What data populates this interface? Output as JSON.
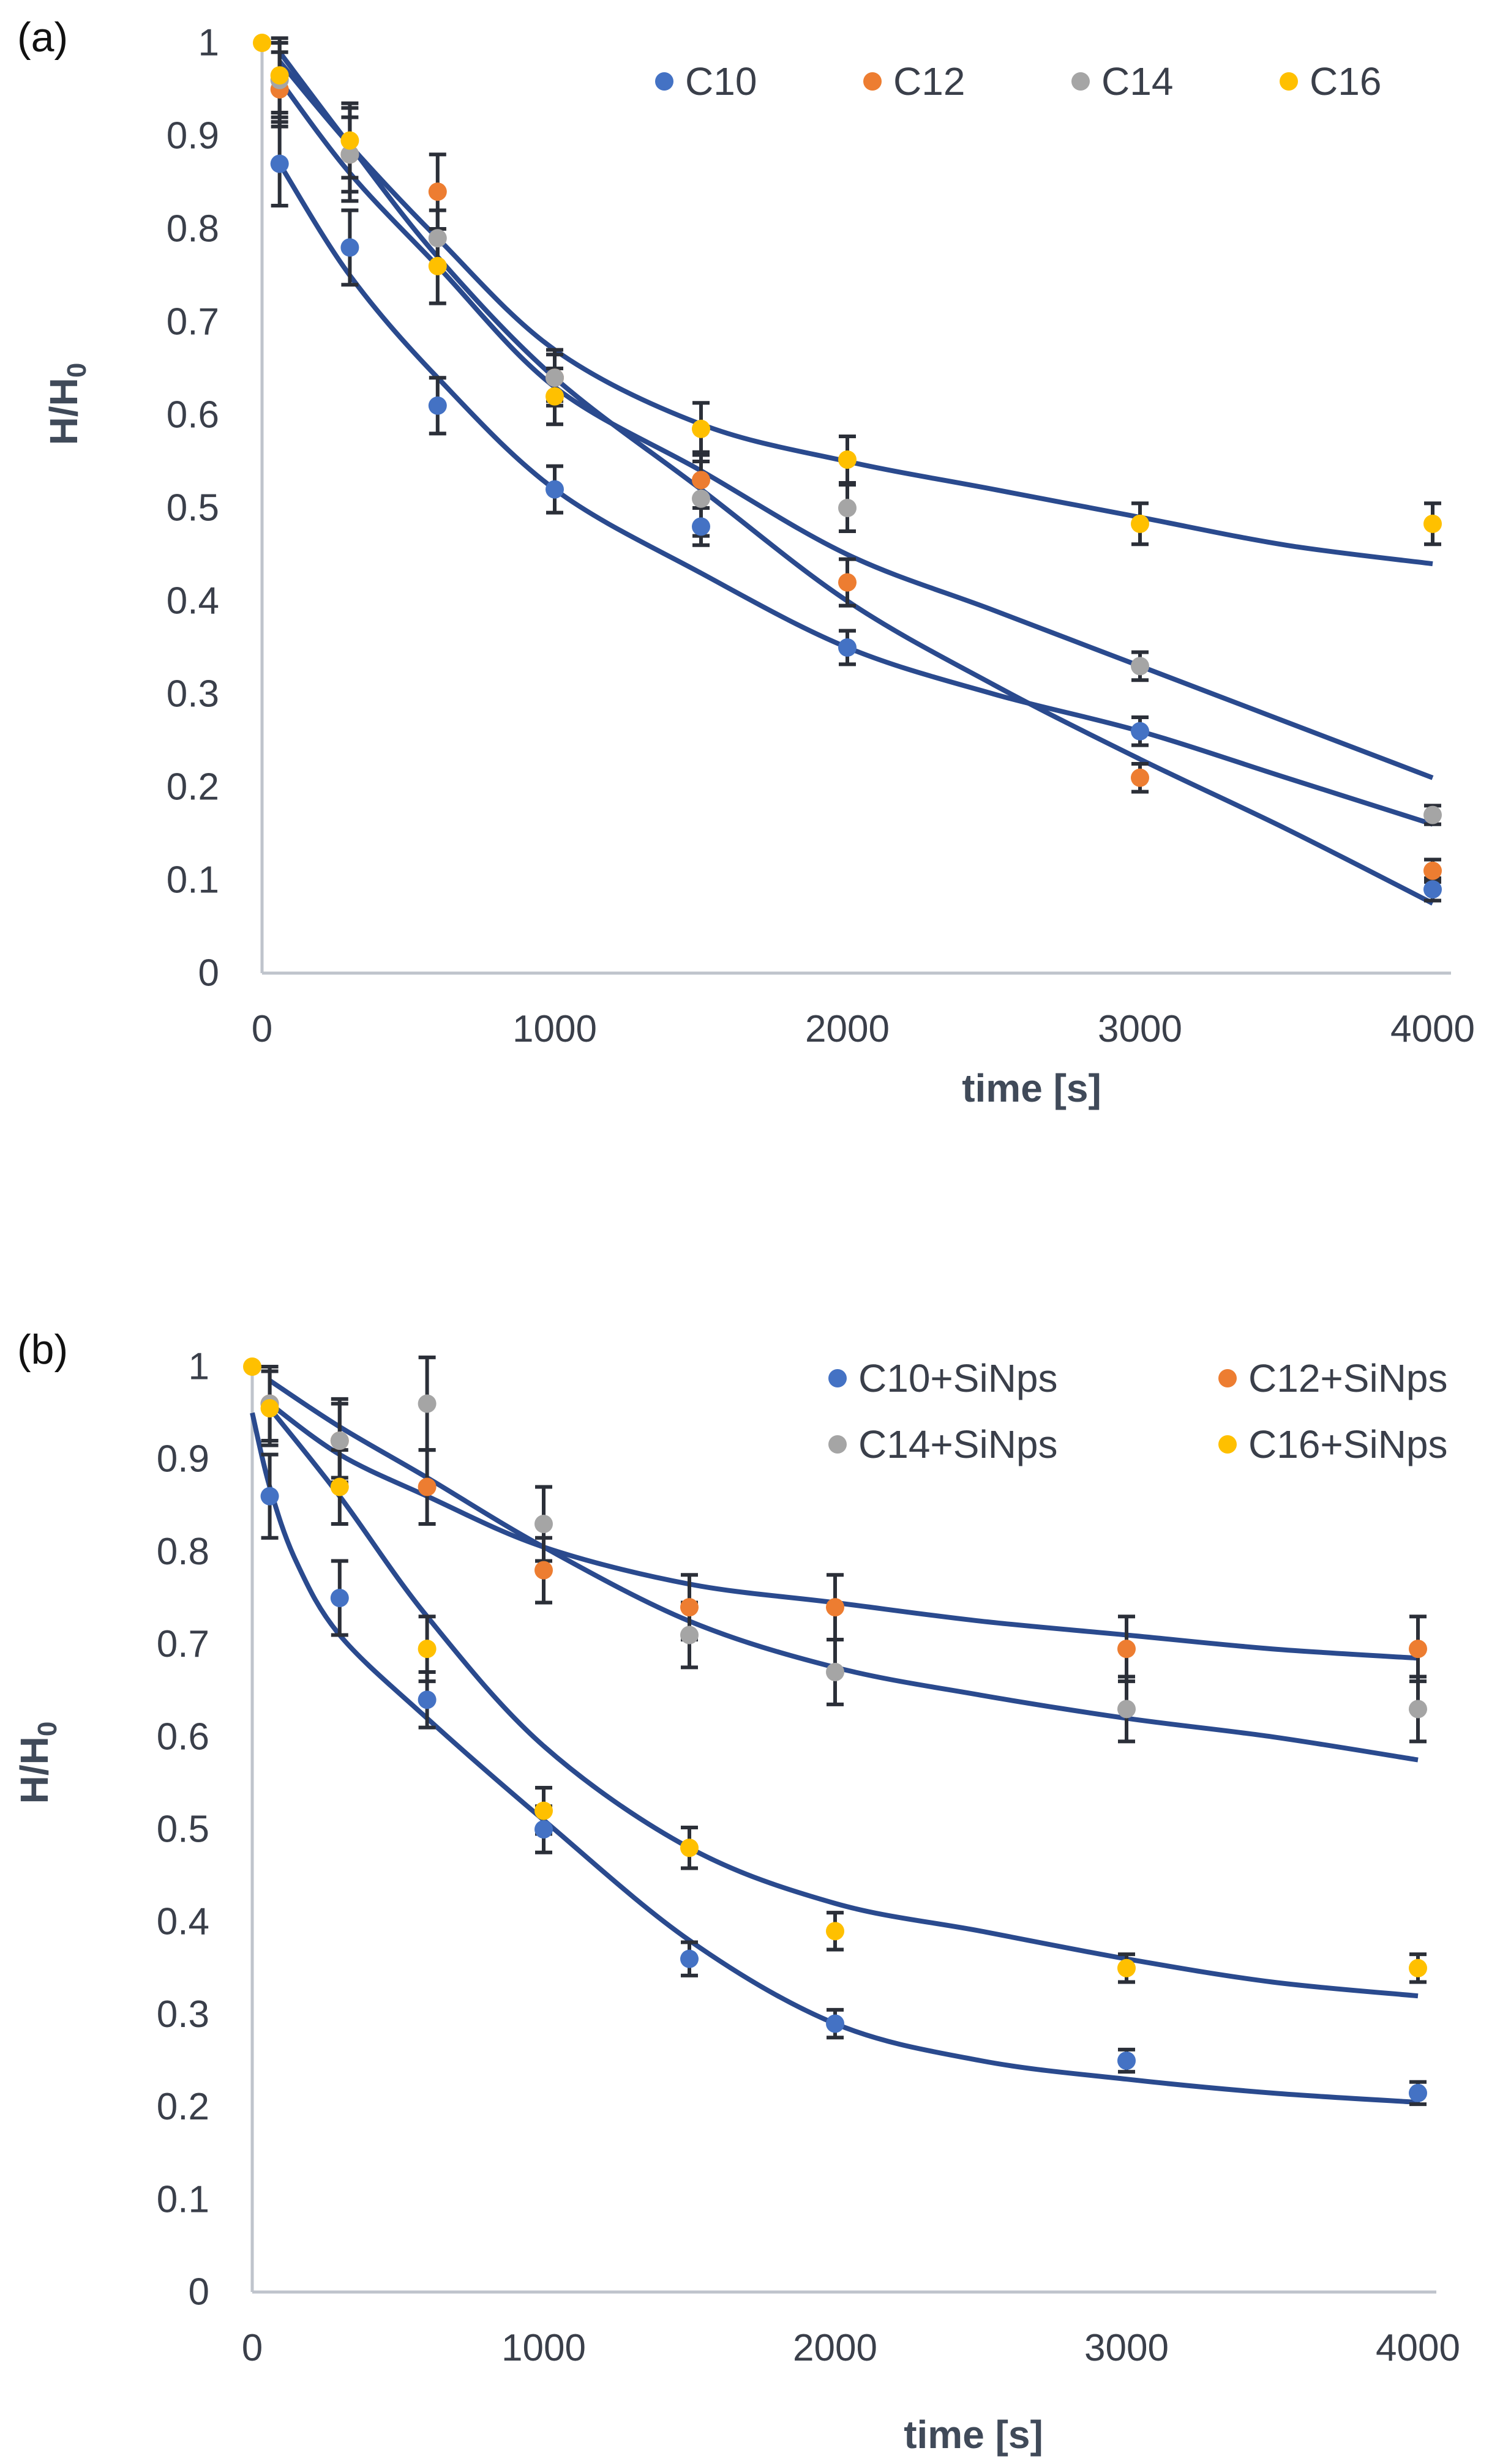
{
  "chart_data": [
    {
      "type": "scatter",
      "panel_label": "(a)",
      "xlabel": "time [s]",
      "ylabel_main": "H/H",
      "ylabel_sub": "0",
      "xlim": [
        0,
        4000
      ],
      "ylim": [
        0,
        1
      ],
      "x_ticks": [
        "0",
        "1000",
        "2000",
        "3000",
        "4000"
      ],
      "y_ticks": [
        "0",
        "0.1",
        "0.2",
        "0.3",
        "0.4",
        "0.5",
        "0.6",
        "0.7",
        "0.8",
        "0.9",
        "1"
      ],
      "legend_position": "top-right",
      "series": [
        {
          "name": "C10",
          "color": "#4472c4",
          "x": [
            60,
            300,
            600,
            1000,
            1500,
            2000,
            3000,
            4000
          ],
          "y": [
            0.87,
            0.78,
            0.61,
            0.52,
            0.48,
            0.35,
            0.26,
            0.09
          ],
          "err": [
            0.045,
            0.04,
            0.03,
            0.025,
            0.02,
            0.018,
            0.015,
            0.012
          ],
          "fit_x": [
            60,
            300,
            600,
            1000,
            1500,
            2000,
            2500,
            3000,
            3500,
            4000
          ],
          "fit_y": [
            0.87,
            0.75,
            0.64,
            0.52,
            0.43,
            0.35,
            0.3,
            0.26,
            0.21,
            0.16
          ]
        },
        {
          "name": "C12",
          "color": "#ed7d31",
          "x": [
            60,
            300,
            600,
            1000,
            1500,
            2000,
            3000,
            4000
          ],
          "y": [
            0.95,
            0.88,
            0.84,
            0.64,
            0.53,
            0.42,
            0.21,
            0.11
          ],
          "err": [
            0.04,
            0.05,
            0.04,
            0.03,
            0.03,
            0.025,
            0.015,
            0.012
          ],
          "fit_x": [
            60,
            300,
            600,
            1000,
            1500,
            2000,
            2500,
            3000,
            3500,
            4000
          ],
          "fit_y": [
            0.99,
            0.89,
            0.77,
            0.64,
            0.52,
            0.4,
            0.31,
            0.23,
            0.155,
            0.075
          ]
        },
        {
          "name": "C14",
          "color": "#a5a5a5",
          "x": [
            60,
            300,
            600,
            1000,
            1500,
            2000,
            3000,
            4000
          ],
          "y": [
            0.96,
            0.88,
            0.79,
            0.64,
            0.51,
            0.5,
            0.33,
            0.17
          ],
          "err": [
            0.04,
            0.04,
            0.03,
            0.025,
            0.04,
            0.025,
            0.015,
            0.01
          ],
          "fit_x": [
            60,
            300,
            600,
            1000,
            1500,
            2000,
            2500,
            3000,
            3500,
            4000
          ],
          "fit_y": [
            0.96,
            0.86,
            0.76,
            0.63,
            0.54,
            0.45,
            0.39,
            0.33,
            0.27,
            0.21
          ]
        },
        {
          "name": "C16",
          "color": "#ffc000",
          "x": [
            0,
            60,
            300,
            600,
            1000,
            1500,
            2000,
            3000,
            4000
          ],
          "y": [
            1.0,
            0.965,
            0.895,
            0.76,
            0.62,
            0.585,
            0.552,
            0.483,
            0.483
          ],
          "err": [
            0,
            0.04,
            0.04,
            0.04,
            0.03,
            0.028,
            0.025,
            0.022,
            0.022
          ],
          "fit_x": [
            60,
            300,
            600,
            1000,
            1500,
            2000,
            2500,
            3000,
            3500,
            4000
          ],
          "fit_y": [
            0.98,
            0.89,
            0.79,
            0.67,
            0.59,
            0.55,
            0.52,
            0.49,
            0.46,
            0.44
          ]
        }
      ]
    },
    {
      "type": "scatter",
      "panel_label": "(b)",
      "xlabel": "time [s]",
      "ylabel_main": "H/H",
      "ylabel_sub": "0",
      "xlim": [
        0,
        4000
      ],
      "ylim": [
        0,
        1
      ],
      "x_ticks": [
        "0",
        "1000",
        "2000",
        "3000",
        "4000"
      ],
      "y_ticks": [
        "0",
        "0.1",
        "0.2",
        "0.3",
        "0.4",
        "0.5",
        "0.6",
        "0.7",
        "0.8",
        "0.9",
        "1"
      ],
      "legend_position": "top-right",
      "series": [
        {
          "name": "C10+SiNps",
          "color": "#4472c4",
          "x": [
            60,
            300,
            600,
            1000,
            1500,
            2000,
            3000,
            4000
          ],
          "y": [
            0.86,
            0.75,
            0.64,
            0.5,
            0.36,
            0.29,
            0.25,
            0.215
          ],
          "err": [
            0.045,
            0.04,
            0.03,
            0.025,
            0.018,
            0.015,
            0.012,
            0.012
          ],
          "fit_x": [
            0,
            60,
            150,
            300,
            600,
            1000,
            1500,
            2000,
            2500,
            3000,
            3500,
            4000
          ],
          "fit_y": [
            0.95,
            0.87,
            0.79,
            0.71,
            0.62,
            0.51,
            0.38,
            0.29,
            0.25,
            0.23,
            0.215,
            0.205
          ]
        },
        {
          "name": "C12+SiNps",
          "color": "#ed7d31",
          "x": [
            60,
            300,
            600,
            1000,
            1500,
            2000,
            3000,
            4000
          ],
          "y": [
            0.96,
            0.92,
            0.87,
            0.78,
            0.74,
            0.74,
            0.695,
            0.695
          ],
          "err": [
            0.04,
            0.045,
            0.04,
            0.035,
            0.035,
            0.035,
            0.035,
            0.035
          ],
          "fit_x": [
            60,
            300,
            600,
            1000,
            1500,
            2000,
            2500,
            3000,
            3500,
            4000
          ],
          "fit_y": [
            0.96,
            0.905,
            0.86,
            0.805,
            0.765,
            0.745,
            0.725,
            0.71,
            0.695,
            0.685
          ]
        },
        {
          "name": "C14+SiNps",
          "color": "#a5a5a5",
          "x": [
            60,
            300,
            600,
            1000,
            1500,
            2000,
            3000,
            4000
          ],
          "y": [
            0.96,
            0.92,
            0.96,
            0.83,
            0.71,
            0.67,
            0.63,
            0.63
          ],
          "err": [
            0.04,
            0.04,
            0.05,
            0.04,
            0.035,
            0.035,
            0.035,
            0.035
          ],
          "fit_x": [
            60,
            300,
            600,
            1000,
            1500,
            2000,
            2500,
            3000,
            3500,
            4000
          ],
          "fit_y": [
            0.985,
            0.935,
            0.88,
            0.805,
            0.725,
            0.675,
            0.645,
            0.62,
            0.6,
            0.575
          ]
        },
        {
          "name": "C16+SiNps",
          "color": "#ffc000",
          "x": [
            0,
            60,
            300,
            600,
            1000,
            1500,
            2000,
            3000,
            4000
          ],
          "y": [
            1.0,
            0.955,
            0.87,
            0.695,
            0.52,
            0.48,
            0.39,
            0.35,
            0.35
          ],
          "err": [
            0,
            0.04,
            0.04,
            0.035,
            0.025,
            0.022,
            0.02,
            0.015,
            0.015
          ],
          "fit_x": [
            60,
            300,
            600,
            1000,
            1500,
            2000,
            2500,
            3000,
            3500,
            4000
          ],
          "fit_y": [
            0.955,
            0.86,
            0.73,
            0.59,
            0.48,
            0.42,
            0.39,
            0.36,
            0.335,
            0.32
          ]
        }
      ]
    }
  ]
}
